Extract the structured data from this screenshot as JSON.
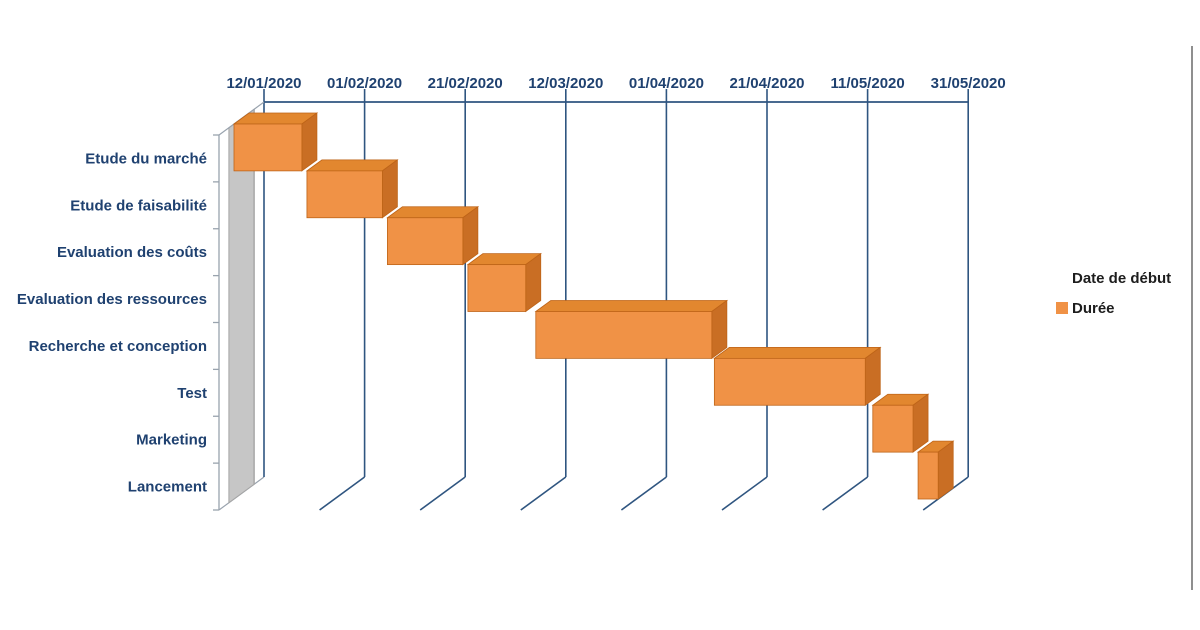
{
  "chart_data": {
    "type": "bar",
    "subtype": "3d-horizontal-gantt",
    "orientation": "horizontal",
    "title": "",
    "categories": [
      "Etude du marché",
      "Etude de faisabilité",
      "Evaluation des coûts",
      "Evaluation des ressources",
      "Recherche et conception",
      "Test",
      "Marketing",
      "Lancement"
    ],
    "series": [
      {
        "name": "Date de début",
        "role": "hidden-offset",
        "start_dates": [
          "12/01/2020",
          "26/01/2020",
          "11/02/2020",
          "27/02/2020",
          "12/03/2020",
          "16/04/2020",
          "18/05/2020",
          "27/05/2020"
        ],
        "start_day_offsets": [
          0,
          14.5,
          30.5,
          46.5,
          60,
          95.5,
          127,
          136
        ]
      },
      {
        "name": "Durée",
        "role": "duration",
        "duration_days": [
          13.5,
          15,
          15,
          11.5,
          35,
          30,
          8,
          4
        ]
      }
    ],
    "x_axis": {
      "position": "top",
      "tick_labels": [
        "12/01/2020",
        "01/02/2020",
        "21/02/2020",
        "12/03/2020",
        "01/04/2020",
        "21/04/2020",
        "11/05/2020",
        "31/05/2020"
      ],
      "min": "12/01/2020",
      "max": "31/05/2020",
      "interval_days": 20,
      "total_days": 140
    },
    "gridlines": true,
    "legend": {
      "position": "right",
      "items": [
        {
          "label": "Date de début",
          "swatch": "none"
        },
        {
          "label": "Durée",
          "swatch": "#F09246"
        }
      ]
    },
    "colors": {
      "bar_front": "#F09246",
      "bar_top": "#E2872F",
      "bar_side": "#C96E24",
      "bar_outline": "#BE6418",
      "wall_fill": "#C6C6C6",
      "wall_edge": "#A5A5A5",
      "grid_line": "#2F5580",
      "frame_line": "#99A3AE",
      "label_text": "#1F4170",
      "legend_text": "#1D1D1D",
      "border_line": "#8F8F8F",
      "background": "#FFFFFF"
    }
  }
}
